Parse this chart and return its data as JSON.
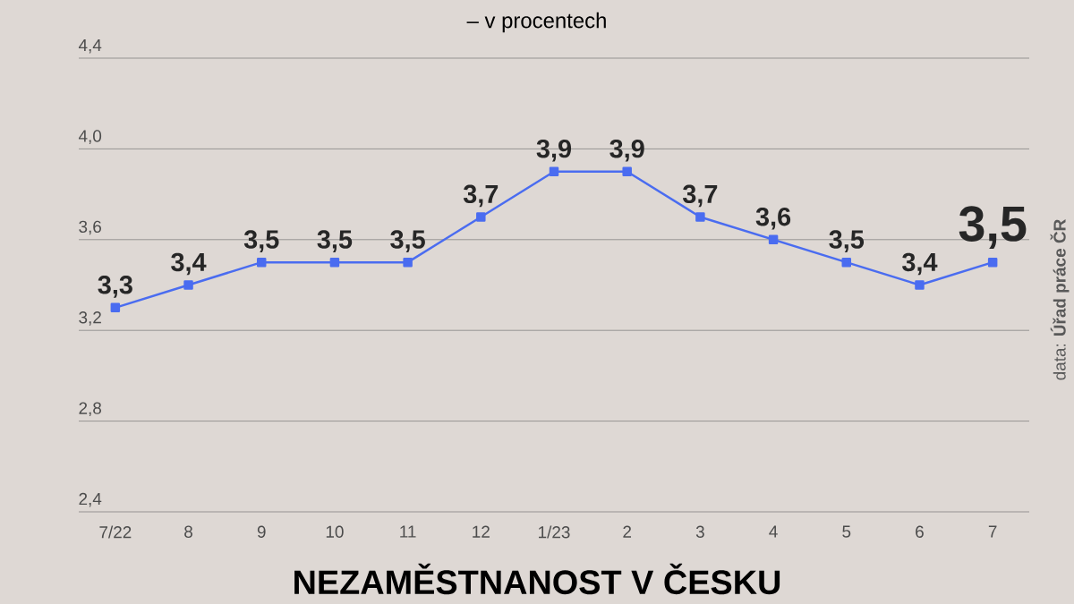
{
  "chart_data": {
    "type": "line",
    "title": "NEZAMĚSTNANOST V ČESKU",
    "subtitle": "– v procentech",
    "categories": [
      "7/22",
      "8",
      "9",
      "10",
      "11",
      "12",
      "1/23",
      "2",
      "3",
      "4",
      "5",
      "6",
      "7"
    ],
    "values": [
      3.3,
      3.4,
      3.5,
      3.5,
      3.5,
      3.7,
      3.9,
      3.9,
      3.7,
      3.6,
      3.5,
      3.4,
      3.5
    ],
    "value_labels": [
      "3,3",
      "3,4",
      "3,5",
      "3,5",
      "3,5",
      "3,7",
      "3,9",
      "3,9",
      "3,7",
      "3,6",
      "3,5",
      "3,4",
      "3,5"
    ],
    "color": "#4a6cf0",
    "marker": "square",
    "line_style": "solid",
    "grid": "y",
    "ylim": [
      2.4,
      4.4
    ],
    "yticks": [
      {
        "value": 2.4,
        "label": "2,4"
      },
      {
        "value": 2.8,
        "label": "2,8"
      },
      {
        "value": 3.2,
        "label": "3,2"
      },
      {
        "value": 3.6,
        "label": "3,6"
      },
      {
        "value": 4.0,
        "label": "4,0"
      },
      {
        "value": 4.4,
        "label": "4,4"
      }
    ],
    "annotations": [
      "data: **Úřad práce ČR**"
    ]
  }
}
